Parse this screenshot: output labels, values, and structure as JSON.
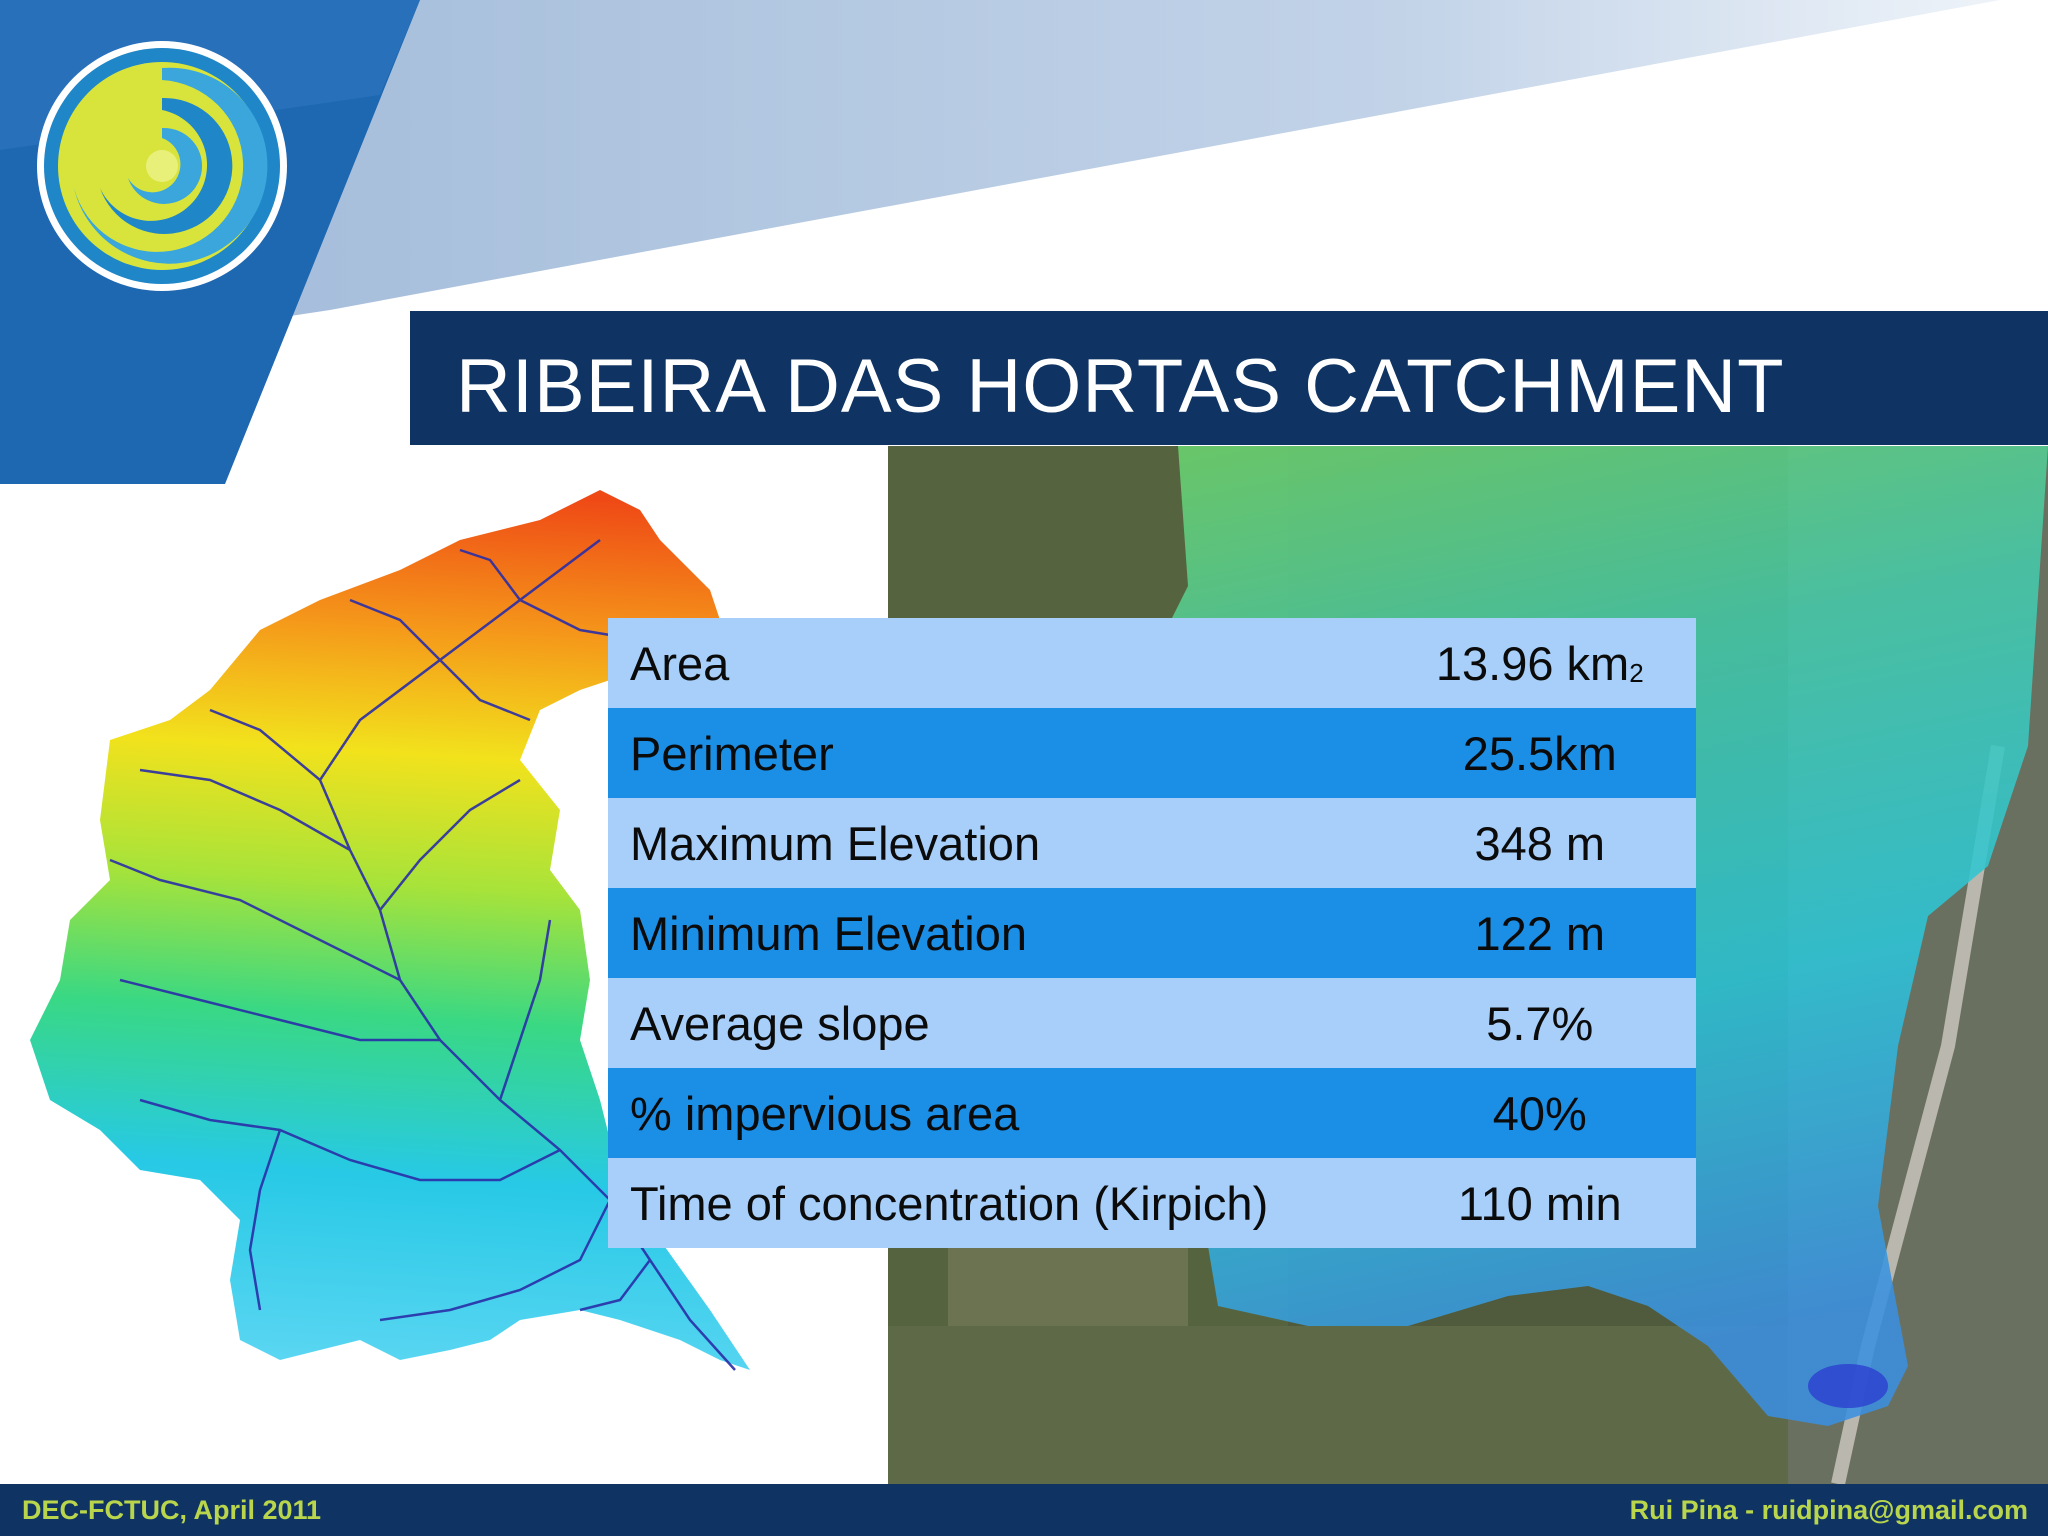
{
  "slide": {
    "title": "RIBEIRA DAS HORTAS CATCHMENT"
  },
  "table": {
    "rows": [
      {
        "label": "Area",
        "value": "13.96 km",
        "superscript": "2"
      },
      {
        "label": "Perimeter",
        "value": "25.5km"
      },
      {
        "label": "Maximum Elevation",
        "value": "348 m"
      },
      {
        "label": "Minimum Elevation",
        "value": "122 m"
      },
      {
        "label": "Average slope",
        "value": "5.7%"
      },
      {
        "label": "% impervious area",
        "value": "40%"
      },
      {
        "label": "Time of concentration (Kirpich)",
        "value": "110 min"
      }
    ]
  },
  "footer": {
    "left": "DEC-FCTUC, April 2011",
    "right": "Rui Pina - ruidpina@gmail.com"
  },
  "colors": {
    "navy": "#0f3463",
    "table_light": "#a7cff9",
    "table_dark": "#1b8ee6",
    "footer_text": "#b8d54c"
  }
}
